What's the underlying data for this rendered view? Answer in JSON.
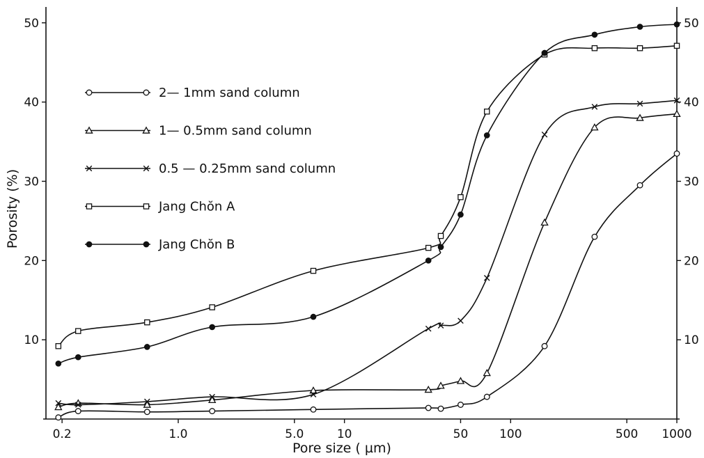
{
  "chart_data": {
    "type": "line",
    "title": "",
    "xlabel": "Pore size ( µm)",
    "ylabel": "Porosity (%)",
    "x_scale": "log",
    "xlim": [
      0.16,
      1000
    ],
    "ylim": [
      0,
      52
    ],
    "grid": false,
    "legend_position": "top-left",
    "x_ticks": [
      {
        "value": 0.2,
        "label": "0.2"
      },
      {
        "value": 1.0,
        "label": "1.0"
      },
      {
        "value": 5.0,
        "label": "5.0"
      },
      {
        "value": 10,
        "label": "10"
      },
      {
        "value": 50,
        "label": "50"
      },
      {
        "value": 100,
        "label": "100"
      },
      {
        "value": 500,
        "label": "500"
      },
      {
        "value": 1000,
        "label": "1000"
      }
    ],
    "y_ticks_left": [
      {
        "value": 10,
        "label": "10"
      },
      {
        "value": 20,
        "label": "20"
      },
      {
        "value": 30,
        "label": "30"
      },
      {
        "value": 40,
        "label": "40"
      },
      {
        "value": 50,
        "label": "50"
      }
    ],
    "y_ticks_right": [
      {
        "value": 10,
        "label": "10"
      },
      {
        "value": 20,
        "label": "20"
      },
      {
        "value": 30,
        "label": "30"
      },
      {
        "value": 40,
        "label": "40"
      },
      {
        "value": 50,
        "label": "50"
      }
    ],
    "series": [
      {
        "name": "2— 1mm sand column",
        "marker": "circle-open",
        "x": [
          0.19,
          0.25,
          0.65,
          1.6,
          6.5,
          32,
          38,
          50,
          72,
          160,
          320,
          600,
          1000
        ],
        "y": [
          0.2,
          1.0,
          0.9,
          1.0,
          1.2,
          1.4,
          1.3,
          1.8,
          2.8,
          9.2,
          23,
          29.5,
          33.5
        ]
      },
      {
        "name": "1— 0.5mm sand column",
        "marker": "triangle-open",
        "x": [
          0.19,
          0.25,
          0.65,
          1.6,
          6.5,
          32,
          38,
          50,
          72,
          160,
          320,
          600,
          1000
        ],
        "y": [
          1.5,
          2.0,
          1.8,
          2.4,
          3.6,
          3.7,
          4.2,
          4.8,
          5.8,
          24.8,
          36.8,
          38,
          38.5
        ]
      },
      {
        "name": "0.5 — 0.25mm sand column",
        "marker": "cross",
        "x": [
          0.19,
          0.25,
          0.65,
          1.6,
          6.5,
          32,
          38,
          50,
          72,
          160,
          320,
          600,
          1000
        ],
        "y": [
          2.0,
          1.8,
          2.2,
          2.8,
          3.1,
          11.4,
          11.8,
          12.4,
          17.8,
          35.9,
          39.4,
          39.8,
          40.2
        ]
      },
      {
        "name": "Jang Chŏn A",
        "marker": "square-open",
        "x": [
          0.19,
          0.25,
          0.65,
          1.6,
          6.5,
          32,
          38,
          50,
          72,
          160,
          320,
          600,
          1000
        ],
        "y": [
          9.2,
          11.1,
          12.2,
          14.1,
          18.7,
          21.6,
          23.1,
          28.0,
          38.8,
          46.0,
          46.8,
          46.8,
          47.1
        ]
      },
      {
        "name": "Jang Chŏn B",
        "marker": "circle-filled",
        "x": [
          0.19,
          0.25,
          0.65,
          1.6,
          6.5,
          32,
          38,
          50,
          72,
          160,
          320,
          600,
          1000
        ],
        "y": [
          7.0,
          7.8,
          9.1,
          11.6,
          12.9,
          20.0,
          21.7,
          25.8,
          35.8,
          46.2,
          48.5,
          49.5,
          49.8
        ]
      }
    ]
  }
}
